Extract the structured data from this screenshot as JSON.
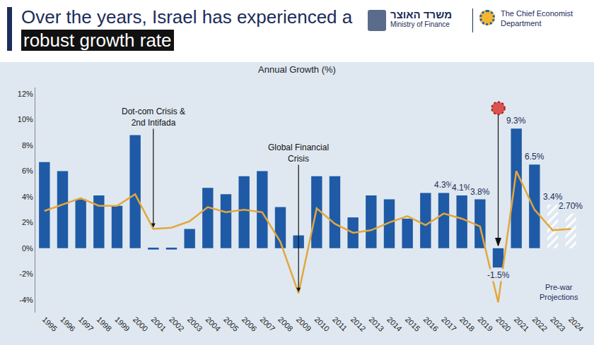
{
  "header": {
    "hebrew": "משרד האוצר",
    "english": "Ministry of Finance",
    "department": "The Chief Economist Department"
  },
  "chart_data": {
    "type": "bar",
    "headline": "Over the years, Israel has experienced a robust growth rate",
    "headline_highlight": "robust growth rate",
    "title": "Annual Growth (%)",
    "categories": [
      "1995",
      "1996",
      "1997",
      "1998",
      "1999",
      "2000",
      "2001",
      "2002",
      "2003",
      "2004",
      "2005",
      "2006",
      "2007",
      "2008",
      "2009",
      "2010",
      "2011",
      "2012",
      "2013",
      "2014",
      "2015",
      "2016",
      "2017",
      "2018",
      "2019",
      "2020",
      "2021",
      "2022",
      "2023",
      "2024"
    ],
    "series": [
      {
        "type": "bar",
        "color": "#1f5aa6",
        "values": [
          6.7,
          6.0,
          3.8,
          4.1,
          3.3,
          8.8,
          -0.1,
          -0.1,
          1.5,
          4.7,
          4.2,
          5.6,
          6.0,
          3.2,
          1.0,
          5.6,
          5.6,
          2.4,
          4.1,
          3.8,
          2.3,
          4.3,
          4.3,
          4.1,
          3.8,
          -1.5,
          9.3,
          6.5,
          null,
          null
        ],
        "value_labels": [
          null,
          null,
          null,
          null,
          null,
          null,
          null,
          null,
          null,
          null,
          null,
          null,
          null,
          null,
          null,
          null,
          null,
          null,
          null,
          null,
          null,
          null,
          "4.3%",
          "4.1%",
          "3.8%",
          "-1.5%",
          "9.3%",
          "6.5%",
          null,
          null
        ]
      },
      {
        "type": "bar",
        "name": "Pre-war Projections",
        "color": "#5f86c2",
        "marker": "hatched",
        "values": [
          null,
          null,
          null,
          null,
          null,
          null,
          null,
          null,
          null,
          null,
          null,
          null,
          null,
          null,
          null,
          null,
          null,
          null,
          null,
          null,
          null,
          null,
          null,
          null,
          null,
          null,
          null,
          null,
          3.4,
          2.7
        ],
        "value_labels": [
          null,
          null,
          null,
          null,
          null,
          null,
          null,
          null,
          null,
          null,
          null,
          null,
          null,
          null,
          null,
          null,
          null,
          null,
          null,
          null,
          null,
          null,
          null,
          null,
          null,
          null,
          null,
          null,
          "3.4%",
          "2.70%"
        ]
      },
      {
        "type": "line",
        "color": "#e3a73b",
        "values": [
          2.9,
          3.4,
          3.9,
          3.3,
          3.3,
          4.2,
          1.5,
          1.6,
          2.1,
          3.2,
          2.8,
          3.0,
          2.8,
          0.5,
          -3.5,
          3.1,
          1.9,
          1.2,
          1.4,
          2.0,
          2.5,
          1.8,
          2.7,
          2.3,
          1.7,
          -4.2,
          6.0,
          3.0,
          1.4,
          1.5
        ]
      }
    ],
    "ylim": [
      -5,
      12.5
    ],
    "yticks": [
      {
        "value": -4,
        "label": "-4%"
      },
      {
        "value": -2,
        "label": "-2%"
      },
      {
        "value": 0,
        "label": "0%"
      },
      {
        "value": 2,
        "label": "2%"
      },
      {
        "value": 4,
        "label": "4%"
      },
      {
        "value": 6,
        "label": "6%"
      },
      {
        "value": 8,
        "label": "8%"
      },
      {
        "value": 10,
        "label": "10%"
      },
      {
        "value": 12,
        "label": "12%"
      }
    ],
    "grid": false,
    "data_labels": true,
    "annotations": [
      {
        "text": "Dot-com Crisis & 2nd Intifada",
        "x": "2001"
      },
      {
        "text": "Global Financial Crisis",
        "x": "2009"
      },
      {
        "x": "2020",
        "marker": "virus"
      }
    ]
  }
}
